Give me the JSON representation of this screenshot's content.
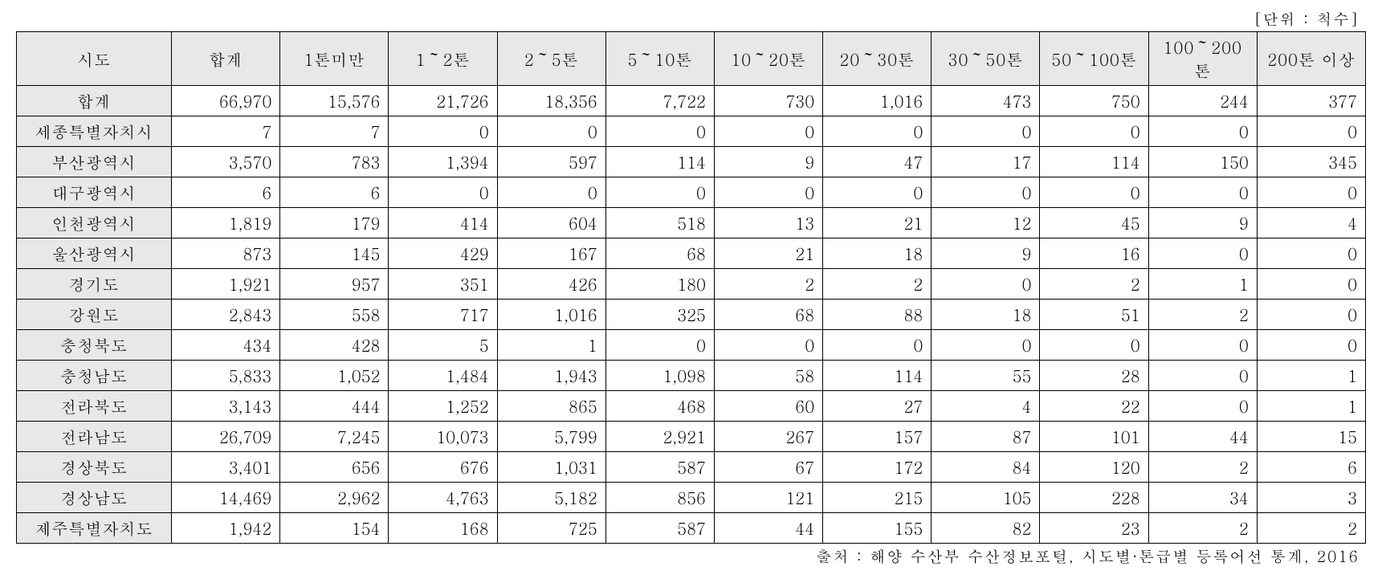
{
  "unit_label": "[단위 : 척수]",
  "footer_note": "출처 : 해양 수산부 수산정보포털, 시도별·톤급별 등록어선 통계, 2016",
  "table": {
    "columns": [
      "시도",
      "합계",
      "1톤미만",
      "1～2톤",
      "2～5톤",
      "5～10톤",
      "10～20톤",
      "20～30톤",
      "30～50톤",
      "50～100톤",
      "100～200톤",
      "200톤 이상"
    ],
    "rows": [
      {
        "label": "합계",
        "values": [
          "66,970",
          "15,576",
          "21,726",
          "18,356",
          "7,722",
          "730",
          "1,016",
          "473",
          "750",
          "244",
          "377"
        ]
      },
      {
        "label": "세종특별자치시",
        "values": [
          "7",
          "7",
          "0",
          "0",
          "0",
          "0",
          "0",
          "0",
          "0",
          "0",
          "0"
        ]
      },
      {
        "label": "부산광역시",
        "values": [
          "3,570",
          "783",
          "1,394",
          "597",
          "114",
          "9",
          "47",
          "17",
          "114",
          "150",
          "345"
        ]
      },
      {
        "label": "대구광역시",
        "values": [
          "6",
          "6",
          "0",
          "0",
          "0",
          "0",
          "0",
          "0",
          "0",
          "0",
          "0"
        ]
      },
      {
        "label": "인천광역시",
        "values": [
          "1,819",
          "179",
          "414",
          "604",
          "518",
          "13",
          "21",
          "12",
          "45",
          "9",
          "4"
        ]
      },
      {
        "label": "울산광역시",
        "values": [
          "873",
          "145",
          "429",
          "167",
          "68",
          "21",
          "18",
          "9",
          "16",
          "0",
          "0"
        ]
      },
      {
        "label": "경기도",
        "values": [
          "1,921",
          "957",
          "351",
          "426",
          "180",
          "2",
          "2",
          "0",
          "2",
          "1",
          "0"
        ]
      },
      {
        "label": "강원도",
        "values": [
          "2,843",
          "558",
          "717",
          "1,016",
          "325",
          "68",
          "88",
          "18",
          "51",
          "2",
          "0"
        ]
      },
      {
        "label": "충청북도",
        "values": [
          "434",
          "428",
          "5",
          "1",
          "0",
          "0",
          "0",
          "0",
          "0",
          "0",
          "0"
        ]
      },
      {
        "label": "충청남도",
        "values": [
          "5,833",
          "1,052",
          "1,484",
          "1,943",
          "1,098",
          "58",
          "114",
          "55",
          "28",
          "0",
          "1"
        ]
      },
      {
        "label": "전라북도",
        "values": [
          "3,143",
          "444",
          "1,252",
          "865",
          "468",
          "60",
          "27",
          "4",
          "22",
          "0",
          "1"
        ]
      },
      {
        "label": "전라남도",
        "values": [
          "26,709",
          "7,245",
          "10,073",
          "5,799",
          "2,921",
          "267",
          "157",
          "87",
          "101",
          "44",
          "15"
        ]
      },
      {
        "label": "경상북도",
        "values": [
          "3,401",
          "656",
          "676",
          "1,031",
          "587",
          "67",
          "172",
          "84",
          "120",
          "2",
          "6"
        ]
      },
      {
        "label": "경상남도",
        "values": [
          "14,469",
          "2,962",
          "4,763",
          "5,182",
          "856",
          "121",
          "215",
          "105",
          "228",
          "34",
          "3"
        ]
      },
      {
        "label": "제주특별자치도",
        "values": [
          "1,942",
          "154",
          "168",
          "725",
          "587",
          "44",
          "155",
          "82",
          "23",
          "2",
          "2"
        ]
      }
    ]
  },
  "styling": {
    "header_bg_color": "#e8e8e8",
    "border_color": "#000000",
    "background_color": "#ffffff",
    "font_family": "Batang, serif",
    "cell_font_size": 20,
    "label_font_size": 19,
    "text_align_data": "right",
    "text_align_header": "center"
  }
}
